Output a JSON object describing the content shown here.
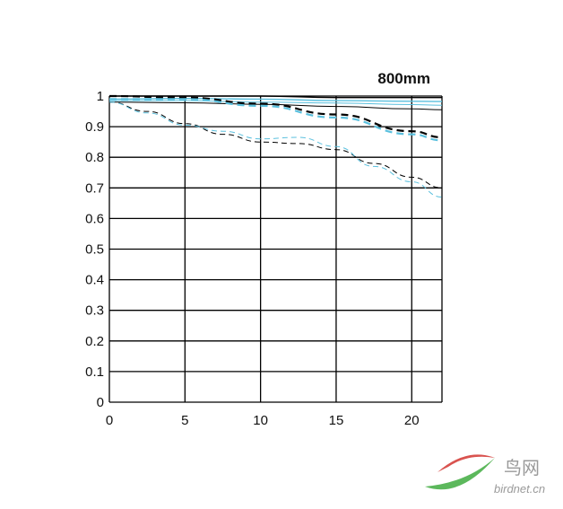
{
  "chart_data": {
    "type": "line",
    "title": "800mm",
    "xlabel": "",
    "ylabel": "",
    "xlim": [
      0,
      22
    ],
    "ylim": [
      0,
      1
    ],
    "x_ticks": [
      0,
      5,
      10,
      15,
      20
    ],
    "y_ticks": [
      0,
      0.1,
      0.2,
      0.3,
      0.4,
      0.5,
      0.6,
      0.7,
      0.8,
      0.9,
      1
    ],
    "y_tick_labels": [
      "0",
      "0.1",
      "0.2",
      "0.3",
      "0.4",
      "0.5",
      "0.6",
      "0.7",
      "0.8",
      "0.9",
      "1"
    ],
    "grid": true,
    "series": [
      {
        "color": "#000000",
        "dash": "solid",
        "width": 1.4,
        "x": [
          0,
          5,
          10,
          15,
          20,
          22
        ],
        "values": [
          1.0,
          1.0,
          1.0,
          0.995,
          0.995,
          0.995
        ]
      },
      {
        "color": "#000000",
        "dash": "solid",
        "width": 1.0,
        "x": [
          0,
          5,
          10,
          15,
          20,
          22
        ],
        "values": [
          0.98,
          0.978,
          0.973,
          0.966,
          0.958,
          0.955
        ]
      },
      {
        "color": "#5bc0de",
        "dash": "solid",
        "width": 1.4,
        "x": [
          0,
          5,
          10,
          15,
          20,
          22
        ],
        "values": [
          0.99,
          0.992,
          0.99,
          0.985,
          0.983,
          0.982
        ]
      },
      {
        "color": "#5bc0de",
        "dash": "solid",
        "width": 1.0,
        "x": [
          0,
          5,
          10,
          15,
          20,
          22
        ],
        "values": [
          0.985,
          0.985,
          0.98,
          0.977,
          0.972,
          0.97
        ]
      },
      {
        "color": "#000000",
        "dash": "dashed",
        "width": 2.2,
        "x": [
          0,
          5,
          10,
          15,
          20,
          22
        ],
        "values": [
          1.0,
          0.995,
          0.975,
          0.94,
          0.885,
          0.865
        ]
      },
      {
        "color": "#5bc0de",
        "dash": "dashed",
        "width": 2.2,
        "x": [
          0,
          5,
          10,
          15,
          20,
          22
        ],
        "values": [
          0.99,
          0.99,
          0.968,
          0.93,
          0.875,
          0.855
        ]
      },
      {
        "color": "#000000",
        "dash": "dashed",
        "width": 1.0,
        "x": [
          0,
          2.5,
          5,
          7.5,
          10,
          12.5,
          15,
          17.5,
          20,
          22
        ],
        "values": [
          0.98,
          0.95,
          0.91,
          0.875,
          0.85,
          0.845,
          0.825,
          0.78,
          0.735,
          0.7
        ]
      },
      {
        "color": "#5bc0de",
        "dash": "dashed",
        "width": 1.0,
        "x": [
          0,
          2.5,
          5,
          7.5,
          10,
          12.5,
          15,
          17.5,
          20,
          22
        ],
        "values": [
          0.98,
          0.945,
          0.905,
          0.885,
          0.86,
          0.865,
          0.835,
          0.77,
          0.72,
          0.67
        ]
      }
    ]
  },
  "watermark": {
    "cn": "鸟网",
    "en": "birdnet.cn",
    "colors": [
      "#d9534f",
      "#5cb85c"
    ]
  }
}
